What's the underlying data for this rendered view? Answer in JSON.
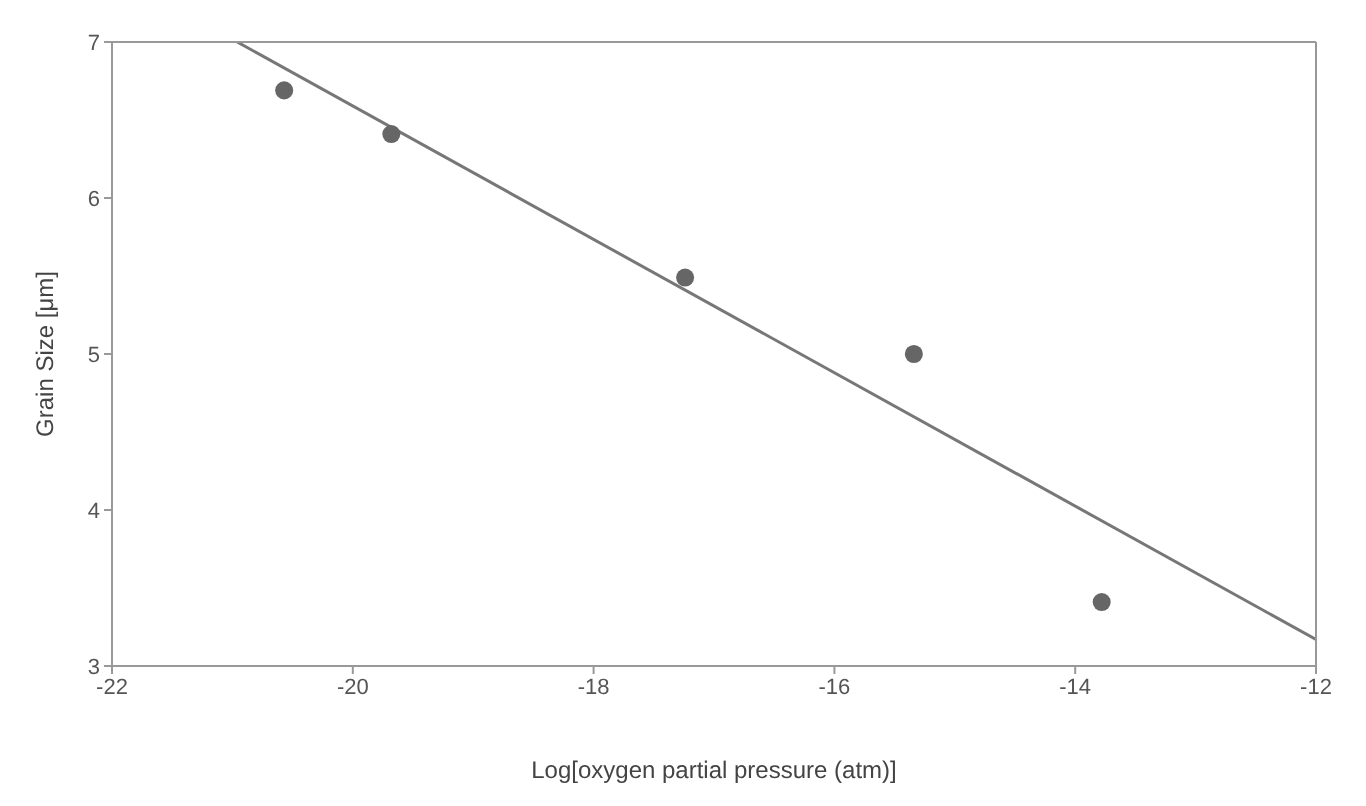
{
  "chart_data": {
    "type": "scatter",
    "xlabel": "Log[oxygen partial pressure (atm)]",
    "ylabel": "Grain Size [μm]",
    "xlim": [
      -22,
      -12
    ],
    "xticks": [
      -22,
      -20,
      -18,
      -16,
      -14,
      -12
    ],
    "ylim": [
      3,
      7
    ],
    "yticks": [
      3,
      4,
      5,
      6,
      7
    ],
    "marker": "circle",
    "series": [
      {
        "color": "#666666",
        "x": [
          -20.57,
          -19.68,
          -17.24,
          -15.34,
          -13.78
        ],
        "values": [
          6.69,
          6.41,
          5.49,
          5.0,
          3.41
        ]
      },
      {
        "type": "line",
        "color": "#777777",
        "x": [
          -20.96,
          -12
        ],
        "values": [
          7,
          3.17
        ],
        "marker": "none",
        "line_style": "solid"
      }
    ]
  }
}
